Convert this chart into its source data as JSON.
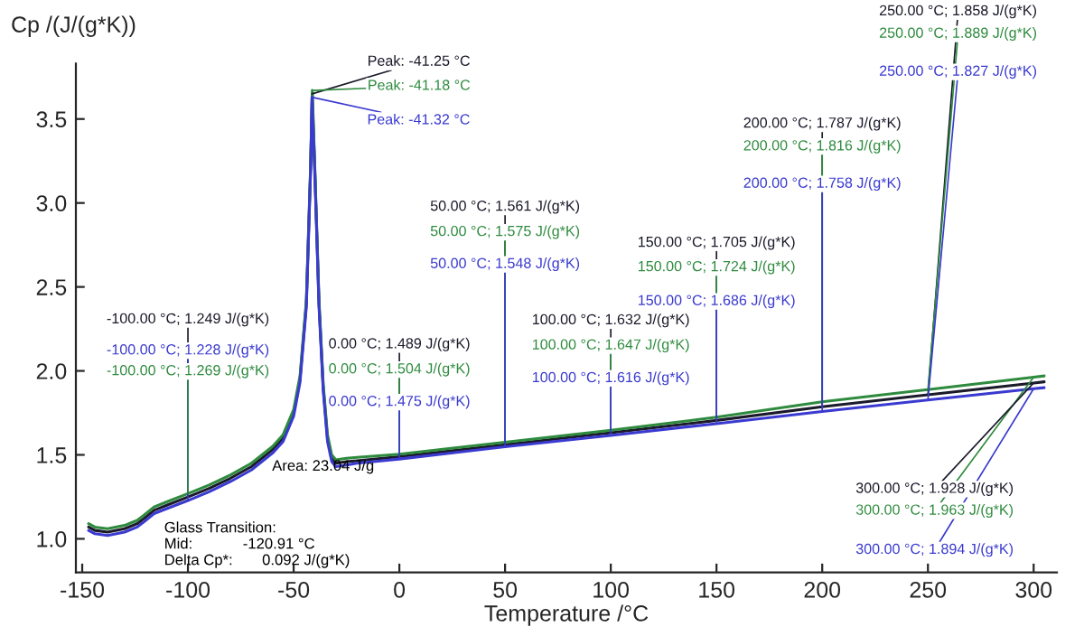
{
  "chart_data": {
    "type": "line",
    "xlabel": "Temperature /°C",
    "ylabel": "Cp /(J/(g*K))",
    "xlim": [
      -153,
      311
    ],
    "ylim": [
      0.8,
      3.83
    ],
    "xticks": [
      -150,
      -100,
      -50,
      0,
      50,
      100,
      150,
      200,
      250,
      300
    ],
    "yticks": [
      {
        "value": 1,
        "label": "1.0"
      },
      1.5,
      {
        "value": 2,
        "label": "2.0"
      },
      2.5,
      {
        "value": 3,
        "label": "3.0"
      },
      3.5
    ],
    "grid": false,
    "marker": "none",
    "line_style": "solid",
    "series": [
      {
        "color": "#1a1a2a",
        "x": [
          -147,
          -144,
          -138,
          -130,
          -124,
          -120.91,
          -116,
          -110,
          -100,
          -90,
          -80,
          -70,
          -60,
          -55,
          -50,
          -47,
          -44,
          -42,
          -41.25,
          -40,
          -38,
          -36,
          -34,
          -32,
          -30,
          -25,
          -20,
          0,
          50,
          100,
          150,
          200,
          250,
          300,
          305
        ],
        "values": [
          1.07,
          1.05,
          1.04,
          1.06,
          1.09,
          1.12,
          1.17,
          1.2,
          1.249,
          1.3,
          1.36,
          1.43,
          1.53,
          1.6,
          1.75,
          1.95,
          2.4,
          3.2,
          3.65,
          3.2,
          2.4,
          1.9,
          1.6,
          1.48,
          1.45,
          1.46,
          1.465,
          1.489,
          1.561,
          1.632,
          1.705,
          1.787,
          1.858,
          1.928,
          1.935
        ]
      },
      {
        "color": "#2e8b3e",
        "x": [
          -147,
          -144,
          -138,
          -130,
          -124,
          -120.91,
          -116,
          -110,
          -100,
          -90,
          -80,
          -70,
          -60,
          -55,
          -50,
          -47,
          -44,
          -42,
          -41.18,
          -40,
          -38,
          -36,
          -34,
          -32,
          -30,
          -25,
          -20,
          0,
          50,
          100,
          150,
          200,
          250,
          300,
          305
        ],
        "values": [
          1.09,
          1.07,
          1.06,
          1.08,
          1.11,
          1.14,
          1.19,
          1.22,
          1.269,
          1.32,
          1.38,
          1.45,
          1.55,
          1.62,
          1.77,
          1.97,
          2.42,
          3.22,
          3.67,
          3.22,
          2.42,
          1.92,
          1.62,
          1.5,
          1.47,
          1.48,
          1.485,
          1.504,
          1.575,
          1.647,
          1.724,
          1.816,
          1.889,
          1.963,
          1.97
        ]
      },
      {
        "color": "#3a3ad0",
        "x": [
          -147,
          -144,
          -138,
          -130,
          -124,
          -120.91,
          -116,
          -110,
          -100,
          -90,
          -80,
          -70,
          -60,
          -55,
          -50,
          -47,
          -44,
          -42,
          -41.32,
          -40,
          -38,
          -36,
          -34,
          -32,
          -30,
          -25,
          -20,
          0,
          50,
          100,
          150,
          200,
          250,
          300,
          305
        ],
        "values": [
          1.05,
          1.03,
          1.02,
          1.04,
          1.07,
          1.1,
          1.15,
          1.18,
          1.228,
          1.28,
          1.34,
          1.41,
          1.51,
          1.58,
          1.73,
          1.93,
          2.38,
          3.18,
          3.63,
          3.18,
          2.38,
          1.88,
          1.58,
          1.46,
          1.43,
          1.44,
          1.45,
          1.475,
          1.548,
          1.616,
          1.686,
          1.758,
          1.827,
          1.894,
          1.9
        ]
      }
    ],
    "annotations": [
      {
        "text": "Peak: -41.25 °C",
        "x": -41.25,
        "y": 3.65
      },
      {
        "text": "Peak: -41.18 °C",
        "x": -41.18,
        "y": 3.67
      },
      {
        "text": "Peak: -41.32 °C",
        "x": -41.32,
        "y": 3.63
      },
      {
        "text": "-100.00 °C; 1.249 J/(g*K)",
        "x": -100,
        "y": 1.249
      },
      {
        "text": "-100.00 °C; 1.228 J/(g*K)",
        "x": -100,
        "y": 1.228
      },
      {
        "text": "-100.00 °C; 1.269 J/(g*K)",
        "x": -100,
        "y": 1.269
      },
      {
        "text": "0.00 °C; 1.489 J/(g*K)",
        "x": 0,
        "y": 1.489
      },
      {
        "text": "0.00 °C; 1.504 J/(g*K)",
        "x": 0,
        "y": 1.504
      },
      {
        "text": "0.00 °C; 1.475 J/(g*K)",
        "x": 0,
        "y": 1.475
      },
      {
        "text": "50.00 °C; 1.561 J/(g*K)",
        "x": 50,
        "y": 1.561
      },
      {
        "text": "50.00 °C; 1.575 J/(g*K)",
        "x": 50,
        "y": 1.575
      },
      {
        "text": "50.00 °C; 1.548 J/(g*K)",
        "x": 50,
        "y": 1.548
      },
      {
        "text": "100.00 °C; 1.632 J/(g*K)",
        "x": 100,
        "y": 1.632
      },
      {
        "text": "100.00 °C; 1.647 J/(g*K)",
        "x": 100,
        "y": 1.647
      },
      {
        "text": "100.00 °C; 1.616 J/(g*K)",
        "x": 100,
        "y": 1.616
      },
      {
        "text": "150.00 °C; 1.705 J/(g*K)",
        "x": 150,
        "y": 1.705
      },
      {
        "text": "150.00 °C; 1.724 J/(g*K)",
        "x": 150,
        "y": 1.724
      },
      {
        "text": "150.00 °C; 1.686 J/(g*K)",
        "x": 150,
        "y": 1.686
      },
      {
        "text": "200.00 °C; 1.787 J/(g*K)",
        "x": 200,
        "y": 1.787
      },
      {
        "text": "200.00 °C; 1.816 J/(g*K)",
        "x": 200,
        "y": 1.816
      },
      {
        "text": "200.00 °C; 1.758 J/(g*K)",
        "x": 200,
        "y": 1.758
      },
      {
        "text": "250.00 °C; 1.858 J/(g*K)",
        "x": 250,
        "y": 1.858
      },
      {
        "text": "250.00 °C; 1.889 J/(g*K)",
        "x": 250,
        "y": 1.889
      },
      {
        "text": "250.00 °C; 1.827 J/(g*K)",
        "x": 250,
        "y": 1.827
      },
      {
        "text": "300.00 °C; 1.928 J/(g*K)",
        "x": 300,
        "y": 1.928
      },
      {
        "text": "300.00 °C; 1.963 J/(g*K)",
        "x": 300,
        "y": 1.963
      },
      {
        "text": "300.00 °C; 1.894 J/(g*K)",
        "x": 300,
        "y": 1.894
      },
      "Area: 23.04 J/g",
      "Glass Transition:\nMid:            -120.91 °C\nDelta Cp*:       0.092 J/(g*K)"
    ]
  }
}
